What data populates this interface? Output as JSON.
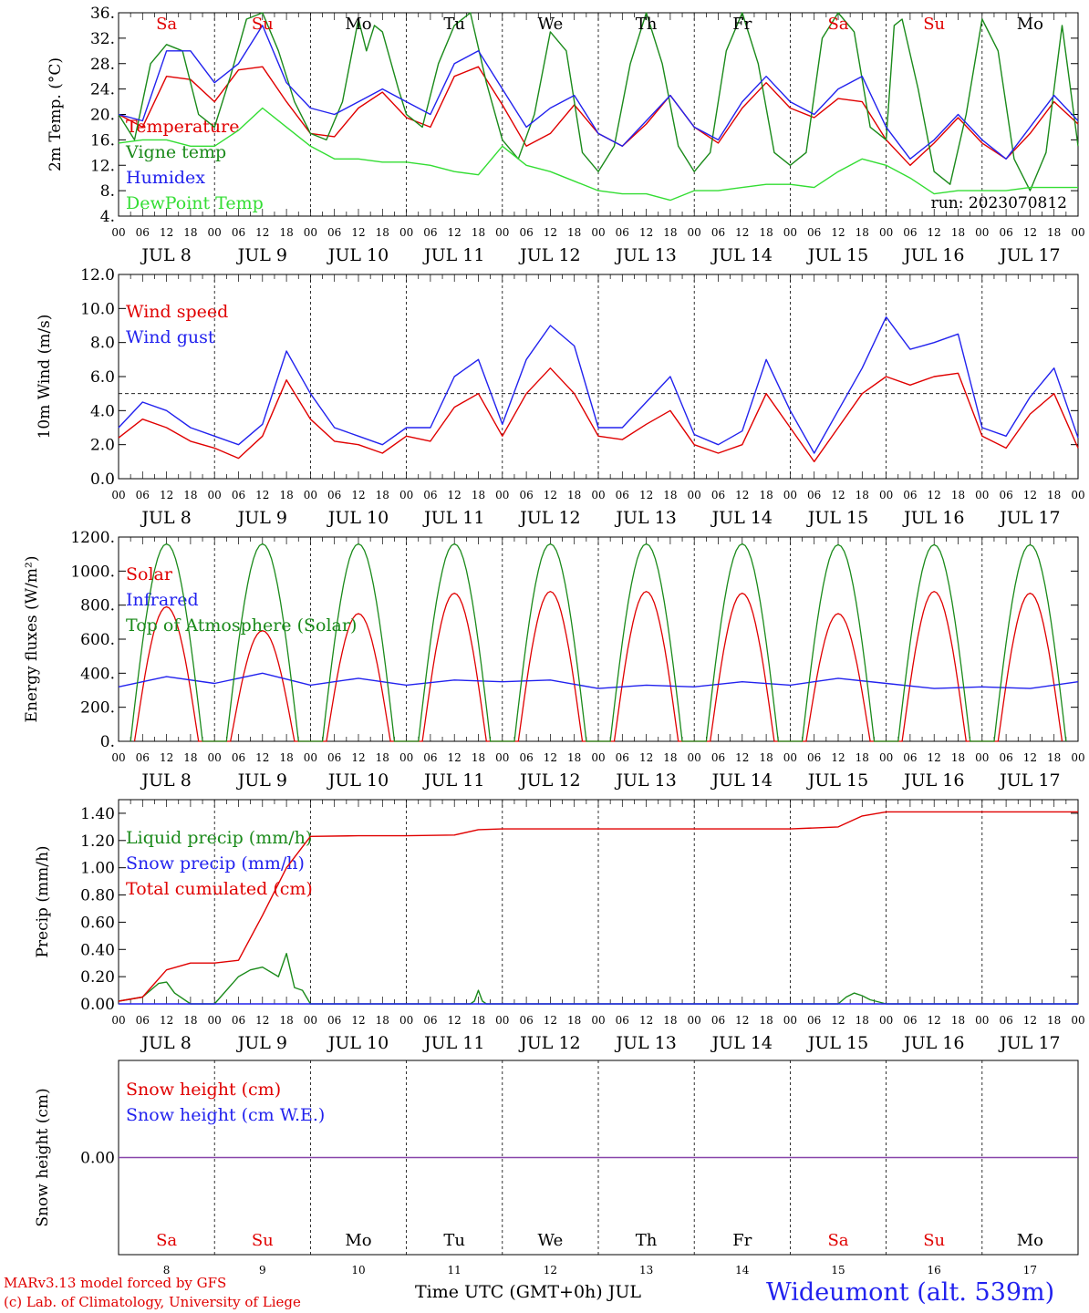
{
  "run_label": "run: 2023070812",
  "x_axis": {
    "hour_ticks": [
      "00",
      "06",
      "12",
      "18"
    ],
    "day_labels": [
      "JUL  8",
      "JUL  9",
      "JUL 10",
      "JUL 11",
      "JUL 12",
      "JUL 13",
      "JUL 14",
      "JUL 15",
      "JUL 16",
      "JUL 17"
    ],
    "weekdays": [
      {
        "label": "Sa",
        "color": "#e00000"
      },
      {
        "label": "Su",
        "color": "#e00000"
      },
      {
        "label": "Mo",
        "color": "#000000"
      },
      {
        "label": "Tu",
        "color": "#000000"
      },
      {
        "label": "We",
        "color": "#000000"
      },
      {
        "label": "Th",
        "color": "#000000"
      },
      {
        "label": "Fr",
        "color": "#000000"
      },
      {
        "label": "Sa",
        "color": "#e00000"
      },
      {
        "label": "Su",
        "color": "#e00000"
      },
      {
        "label": "Mo",
        "color": "#000000"
      }
    ],
    "day_numbers": [
      "8",
      "9",
      "10",
      "11",
      "12",
      "13",
      "14",
      "15",
      "16",
      "17"
    ]
  },
  "footer": {
    "credit_line1": "MARv3.13 model forced by GFS",
    "credit_line2": "(c) Lab. of Climatology, University of Liege",
    "x_title": "Time UTC (GMT+0h) JUL",
    "station": "Wideumont (alt. 539m)"
  },
  "colors": {
    "red": "#e00000",
    "green": "#1a8a1a",
    "blue": "#2222ee",
    "lightgreen": "#33dd33",
    "purple": "#8844aa"
  },
  "chart_data": [
    {
      "type": "line",
      "ylabel": "2m Temp. (°C)",
      "ylim": [
        4,
        36
      ],
      "yticks": [
        "4.",
        "8.",
        "12.",
        "16.",
        "20.",
        "24.",
        "28.",
        "32.",
        "36."
      ],
      "x_unit": "hours since Jul 8 00 UTC",
      "series": [
        {
          "name": "Temperature",
          "color": "#e00000",
          "x": [
            0,
            6,
            12,
            18,
            24,
            30,
            36,
            42,
            48,
            54,
            60,
            66,
            72,
            78,
            84,
            90,
            96,
            102,
            108,
            114,
            120,
            126,
            132,
            138,
            144,
            150,
            156,
            162,
            168,
            174,
            180,
            186,
            192,
            198,
            204,
            210,
            216,
            222,
            228,
            234,
            240
          ],
          "values": [
            20,
            18,
            26,
            25.5,
            22,
            27,
            27.5,
            22,
            17,
            16.5,
            21,
            23.5,
            19.5,
            18,
            26,
            27.5,
            21.5,
            15,
            17,
            21.5,
            17,
            15,
            18.5,
            23,
            18,
            15.5,
            21,
            25,
            21,
            19.5,
            22.5,
            22,
            16,
            12,
            15.5,
            19.5,
            15.5,
            13,
            17,
            22,
            18.5
          ]
        },
        {
          "name": "Vigne temp",
          "color": "#1a8a1a",
          "x": [
            0,
            4,
            8,
            12,
            16,
            20,
            24,
            28,
            32,
            36,
            40,
            44,
            48,
            52,
            56,
            60,
            62,
            64,
            66,
            70,
            72,
            76,
            80,
            84,
            88,
            92,
            96,
            100,
            104,
            108,
            112,
            116,
            120,
            124,
            128,
            132,
            136,
            140,
            144,
            148,
            152,
            156,
            160,
            164,
            168,
            172,
            176,
            180,
            184,
            188,
            192,
            194,
            196,
            200,
            204,
            208,
            212,
            216,
            220,
            224,
            228,
            232,
            236,
            240
          ],
          "values": [
            20,
            16,
            28,
            31,
            30,
            20,
            18,
            26,
            35,
            36,
            30,
            22,
            17,
            16,
            22,
            35,
            30,
            34,
            33,
            24,
            20,
            18,
            28,
            34,
            36,
            25,
            16,
            13,
            20,
            33,
            30,
            14,
            11,
            15,
            28,
            36,
            28,
            15,
            11,
            14,
            30,
            36,
            28,
            14,
            12,
            14,
            32,
            36,
            33,
            18,
            16,
            34,
            35,
            24,
            11,
            9,
            20,
            35,
            30,
            13,
            8,
            14,
            34,
            15
          ]
        },
        {
          "name": "Humidex",
          "color": "#2222ee",
          "x": [
            0,
            6,
            12,
            18,
            24,
            30,
            36,
            42,
            48,
            54,
            60,
            66,
            72,
            78,
            84,
            90,
            96,
            102,
            108,
            114,
            120,
            126,
            132,
            138,
            144,
            150,
            156,
            162,
            168,
            174,
            180,
            186,
            192,
            198,
            204,
            210,
            216,
            222,
            228,
            234,
            240
          ],
          "values": [
            20,
            19,
            30,
            30,
            25,
            28,
            34,
            25,
            21,
            20,
            22,
            24,
            22,
            20,
            28,
            30,
            24,
            18,
            21,
            23,
            17,
            15,
            19,
            23,
            18,
            16,
            22,
            26,
            22,
            20,
            24,
            26,
            18,
            13,
            16,
            20,
            16,
            13,
            18,
            23,
            19
          ]
        },
        {
          "name": "DewPoint Temp",
          "color": "#33dd33",
          "x": [
            0,
            6,
            12,
            18,
            24,
            30,
            36,
            42,
            48,
            54,
            60,
            66,
            72,
            78,
            84,
            90,
            96,
            102,
            108,
            114,
            120,
            126,
            132,
            138,
            144,
            150,
            156,
            162,
            168,
            174,
            180,
            186,
            192,
            198,
            204,
            210,
            216,
            222,
            228,
            234,
            240
          ],
          "values": [
            15.5,
            16,
            16,
            15,
            15,
            17.5,
            21,
            18,
            15,
            13,
            13,
            12.5,
            12.5,
            12,
            11,
            10.5,
            15,
            12,
            11,
            9.5,
            8,
            7.5,
            7.5,
            6.5,
            8,
            8,
            8.5,
            9,
            9,
            8.5,
            11,
            13,
            12,
            10,
            7.5,
            8,
            8,
            8,
            8.5,
            8.5,
            8.5
          ]
        }
      ]
    },
    {
      "type": "line",
      "ylabel": "10m Wind (m/s)",
      "ylim": [
        0,
        12
      ],
      "yticks": [
        "0.0",
        "2.0",
        "4.0",
        "6.0",
        "8.0",
        "10.0",
        "12.0"
      ],
      "reference_line": 5,
      "series": [
        {
          "name": "Wind speed",
          "color": "#e00000",
          "x": [
            0,
            6,
            12,
            18,
            24,
            30,
            36,
            42,
            48,
            54,
            60,
            66,
            72,
            78,
            84,
            90,
            96,
            102,
            108,
            114,
            120,
            126,
            132,
            138,
            144,
            150,
            156,
            162,
            168,
            174,
            180,
            186,
            192,
            198,
            204,
            210,
            216,
            222,
            228,
            234,
            240
          ],
          "values": [
            2.4,
            3.5,
            3,
            2.2,
            1.8,
            1.2,
            2.5,
            5.8,
            3.5,
            2.2,
            2,
            1.5,
            2.5,
            2.2,
            4.2,
            5,
            2.5,
            5,
            6.5,
            5,
            2.5,
            2.3,
            3.2,
            4,
            2,
            1.5,
            2,
            5,
            3,
            1,
            3,
            5,
            6,
            5.5,
            6,
            6.2,
            2.5,
            1.8,
            3.8,
            5,
            1.8
          ]
        },
        {
          "name": "Wind gust",
          "color": "#2222ee",
          "x": [
            0,
            6,
            12,
            18,
            24,
            30,
            36,
            42,
            48,
            54,
            60,
            66,
            72,
            78,
            84,
            90,
            96,
            102,
            108,
            114,
            120,
            126,
            132,
            138,
            144,
            150,
            156,
            162,
            168,
            174,
            180,
            186,
            192,
            198,
            204,
            210,
            216,
            222,
            228,
            234,
            240
          ],
          "values": [
            3,
            4.5,
            4,
            3,
            2.5,
            2,
            3.2,
            7.5,
            5,
            3,
            2.5,
            2,
            3,
            3,
            6,
            7,
            3.2,
            7,
            9,
            7.8,
            3,
            3,
            4.5,
            6,
            2.6,
            2,
            2.8,
            7,
            4,
            1.5,
            4,
            6.5,
            9.5,
            7.6,
            8,
            8.5,
            3,
            2.5,
            4.8,
            6.5,
            2.4
          ]
        }
      ]
    },
    {
      "type": "line",
      "ylabel": "Energy fluxes (W/m²)",
      "ylim": [
        0,
        1200
      ],
      "yticks": [
        "0.",
        "200.",
        "400.",
        "600.",
        "800.",
        "1000.",
        "1200."
      ],
      "series": [
        {
          "name": "Solar",
          "color": "#e00000",
          "daily_peak": [
            790,
            650,
            750,
            870,
            880,
            880,
            870,
            750,
            880,
            870
          ]
        },
        {
          "name": "Infrared",
          "color": "#2222ee",
          "x": [
            0,
            12,
            24,
            36,
            48,
            60,
            72,
            84,
            96,
            108,
            120,
            132,
            144,
            156,
            168,
            180,
            192,
            204,
            216,
            228,
            240
          ],
          "values": [
            320,
            380,
            340,
            400,
            330,
            370,
            330,
            360,
            350,
            360,
            310,
            330,
            320,
            350,
            330,
            370,
            340,
            310,
            320,
            310,
            350
          ]
        },
        {
          "name": "Top of Atmosphere (Solar)",
          "color": "#1a8a1a",
          "daily_peak": [
            1160,
            1160,
            1160,
            1160,
            1160,
            1160,
            1160,
            1155,
            1155,
            1155
          ]
        }
      ]
    },
    {
      "type": "line",
      "ylabel": "Precip (mm/h)",
      "ylim": [
        0,
        1.5
      ],
      "yticks": [
        "0.00",
        "0.20",
        "0.40",
        "0.60",
        "0.80",
        "1.00",
        "1.20",
        "1.40"
      ],
      "series": [
        {
          "name": "Liquid precip (mm/h)",
          "color": "#1a8a1a",
          "x": [
            0,
            6,
            10,
            12,
            14,
            18,
            24,
            30,
            33,
            36,
            40,
            42,
            44,
            46,
            48,
            60,
            88,
            89,
            90,
            91,
            92,
            180,
            182,
            184,
            186,
            188,
            192,
            240
          ],
          "values": [
            0.02,
            0.05,
            0.15,
            0.16,
            0.08,
            0,
            0,
            0.2,
            0.25,
            0.27,
            0.2,
            0.37,
            0.12,
            0.1,
            0,
            0,
            0,
            0.02,
            0.1,
            0.02,
            0,
            0,
            0.05,
            0.08,
            0.06,
            0.03,
            0,
            0
          ]
        },
        {
          "name": "Snow precip (mm/h)",
          "color": "#2222ee",
          "x": [
            0,
            240
          ],
          "values": [
            0,
            0
          ]
        },
        {
          "name": "Total cumulated (cm)",
          "color": "#e00000",
          "x": [
            0,
            6,
            12,
            18,
            24,
            30,
            36,
            42,
            48,
            60,
            72,
            84,
            90,
            96,
            132,
            168,
            180,
            186,
            192,
            240
          ],
          "values": [
            0.02,
            0.05,
            0.25,
            0.3,
            0.3,
            0.32,
            0.65,
            1.0,
            1.23,
            1.235,
            1.235,
            1.24,
            1.28,
            1.285,
            1.285,
            1.285,
            1.3,
            1.38,
            1.41,
            1.41
          ]
        }
      ]
    },
    {
      "type": "line",
      "ylabel": "Snow height (cm)",
      "yticks": [
        "0.00"
      ],
      "series": [
        {
          "name": "Snow height (cm)",
          "color": "#e00000",
          "x": [
            0,
            240
          ],
          "values": [
            0,
            0
          ]
        },
        {
          "name": "Snow height (cm W.E.)",
          "color": "#2222ee",
          "x": [
            0,
            240
          ],
          "values": [
            0,
            0
          ]
        }
      ]
    }
  ]
}
